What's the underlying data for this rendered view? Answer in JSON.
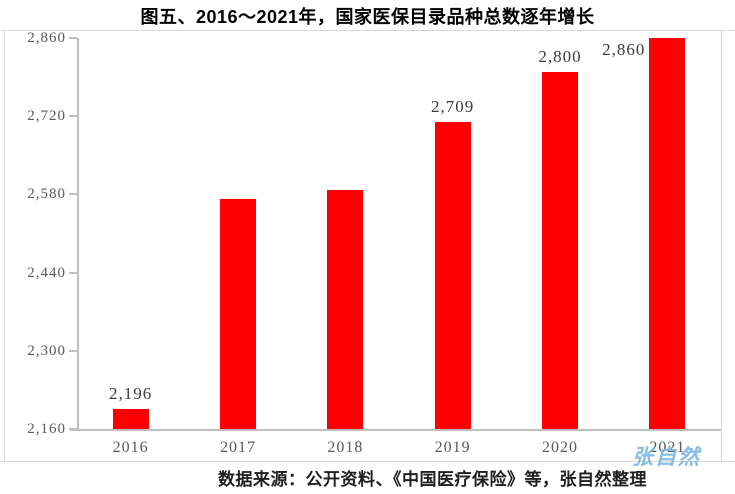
{
  "page": {
    "title": "图五、2016～2021年，国家医保目录品种总数逐年增长",
    "source_note": "数据来源：公开资料、《中国医疗保险》等，张自然整理",
    "watermark": "张自然"
  },
  "chart_data": {
    "type": "bar",
    "title": "图五、2016～2021年，国家医保目录品种总数逐年增长",
    "categories": [
      "2016",
      "2017",
      "2018",
      "2019",
      "2020",
      "2021"
    ],
    "values": [
      2196,
      2571,
      2588,
      2709,
      2800,
      2860
    ],
    "bar_labels": [
      "2,196",
      "",
      "",
      "2,709",
      "2,800",
      "2,860"
    ],
    "label_positions": [
      "above",
      "none",
      "none",
      "above",
      "above",
      "left"
    ],
    "estimated_indices": [
      1,
      2
    ],
    "ylim": [
      2160,
      2860
    ],
    "ytick_values": [
      2860,
      2720,
      2580,
      2440,
      2300,
      2160
    ],
    "ytick_labels": [
      "2,860",
      "2,720",
      "2,580",
      "2,440",
      "2,300",
      "2,160"
    ],
    "ytick_interval": 140,
    "xlabel": "",
    "ylabel": "",
    "grid": false,
    "legend": null,
    "bar_color": "#ff0000"
  },
  "colors": {
    "bar": "#ff0000",
    "axis_line": "#bfbfbf",
    "frame_border": "#d9d9d9",
    "tick_text": "#595959",
    "value_label_text": "#3b3b3b",
    "title_text": "#000000",
    "source_text": "#1f1f1f",
    "watermark_text": "#71b0e2"
  }
}
